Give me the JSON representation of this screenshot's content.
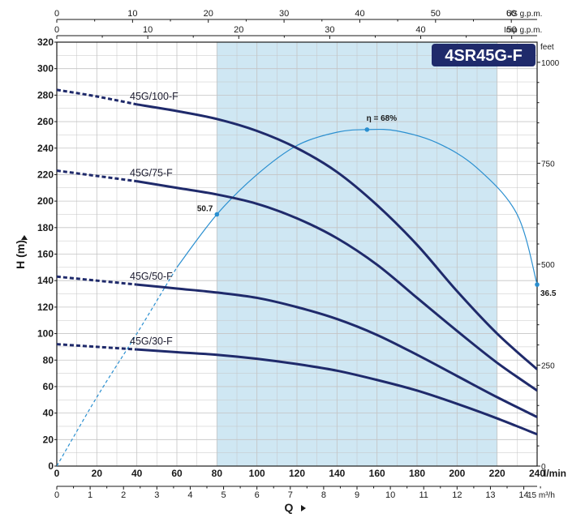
{
  "chart_data": {
    "type": "line",
    "title": "4SR45G-F",
    "xlabel": "Q",
    "ylabel": "H (m)",
    "x_unit": "l/min",
    "xlim": [
      0,
      240
    ],
    "ylim": [
      0,
      320
    ],
    "x_ticks": [
      0,
      20,
      40,
      60,
      80,
      100,
      120,
      140,
      160,
      180,
      200,
      220,
      240
    ],
    "y_ticks": [
      0,
      20,
      40,
      60,
      80,
      100,
      120,
      140,
      160,
      180,
      200,
      220,
      240,
      260,
      280,
      300,
      320
    ],
    "grid": true,
    "efficiency_band": [
      80,
      220
    ],
    "secondary_axes": {
      "us_gpm": {
        "unit": "US g.p.m.",
        "ticks": [
          0,
          10,
          20,
          30,
          40,
          50,
          60
        ]
      },
      "imp_gpm": {
        "unit": "Imp g.p.m.",
        "ticks": [
          0,
          10,
          20,
          30,
          40,
          50
        ]
      },
      "feet": {
        "unit": "feet",
        "ticks": [
          0,
          250,
          500,
          750,
          1000
        ]
      },
      "m3h": {
        "unit": "15 m³/h",
        "ticks": [
          0,
          1,
          2,
          3,
          4,
          5,
          6,
          7,
          8,
          9,
          10,
          11,
          12,
          13,
          14
        ]
      }
    },
    "series": [
      {
        "name": "45G/100-F",
        "x": [
          0,
          20,
          40,
          60,
          80,
          100,
          120,
          140,
          160,
          180,
          200,
          220,
          240
        ],
        "values": [
          284,
          279,
          273,
          268,
          262,
          253,
          240,
          222,
          197,
          167,
          132,
          100,
          73
        ]
      },
      {
        "name": "45G/75-F",
        "x": [
          0,
          20,
          40,
          60,
          80,
          100,
          120,
          140,
          160,
          180,
          200,
          220,
          240
        ],
        "values": [
          223,
          219,
          215,
          210,
          205,
          198,
          187,
          172,
          152,
          127,
          102,
          78,
          57
        ]
      },
      {
        "name": "45G/50-F",
        "x": [
          0,
          20,
          40,
          60,
          80,
          100,
          120,
          140,
          160,
          180,
          200,
          220,
          240
        ],
        "values": [
          143,
          140,
          137,
          134,
          131,
          127,
          120,
          111,
          99,
          84,
          68,
          52,
          37
        ]
      },
      {
        "name": "45G/30-F",
        "x": [
          0,
          20,
          40,
          60,
          80,
          100,
          120,
          140,
          160,
          180,
          200,
          220,
          240
        ],
        "values": [
          92,
          90,
          88,
          86,
          84,
          81,
          77,
          72,
          65,
          57,
          47,
          36,
          24
        ]
      }
    ],
    "efficiency_curve": {
      "x": [
        0,
        20,
        40,
        60,
        80,
        100,
        120,
        140,
        155,
        170,
        190,
        210,
        230,
        240
      ],
      "values": [
        0,
        52,
        100,
        150,
        190,
        220,
        242,
        252,
        254,
        253,
        244,
        225,
        190,
        137
      ]
    },
    "efficiency_labels": [
      {
        "text": "50.7",
        "x": 80,
        "y": 190
      },
      {
        "text": "η = 68%",
        "x": 155,
        "y": 254
      },
      {
        "text": "36.5",
        "x": 240,
        "y": 137
      }
    ],
    "colors": {
      "curve": "#1f2a6b",
      "efficiency": "#2a8fd0",
      "band": "#cfe7f3",
      "grid": "#c4c4c4",
      "title_bg": "#1f2a6b"
    }
  }
}
